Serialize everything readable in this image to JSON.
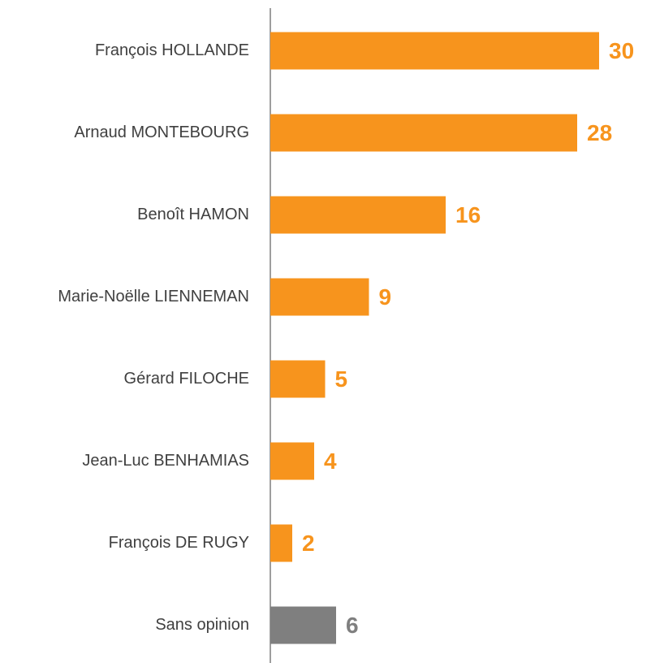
{
  "chart_data": {
    "type": "bar",
    "orientation": "horizontal",
    "categories": [
      "François HOLLANDE",
      "Arnaud MONTEBOURG",
      "Benoît HAMON",
      "Marie-Noëlle LIENNEMAN",
      "Gérard FILOCHE",
      "Jean-Luc BENHAMIAS",
      "François DE RUGY",
      "Sans opinion"
    ],
    "values": [
      30,
      28,
      16,
      9,
      5,
      4,
      2,
      6
    ],
    "colors": [
      "#f7941d",
      "#f7941d",
      "#f7941d",
      "#f7941d",
      "#f7941d",
      "#f7941d",
      "#f7941d",
      "#7f7f7f"
    ],
    "xlim": [
      0,
      30
    ]
  }
}
